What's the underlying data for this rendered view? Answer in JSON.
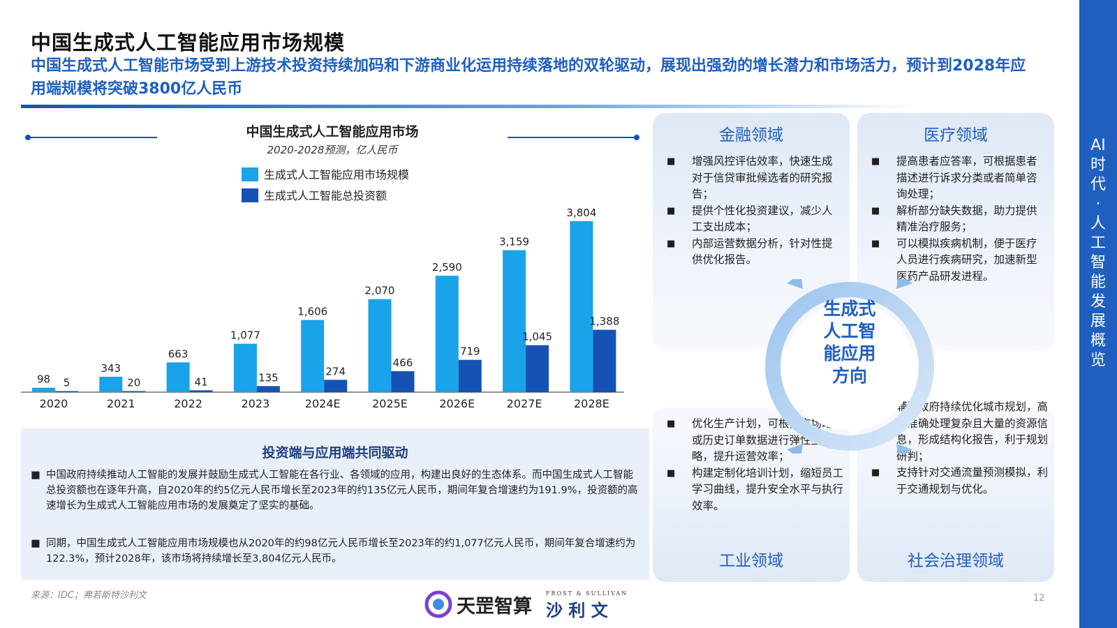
{
  "page": {
    "title": "中国生成式人工智能应用市场规模",
    "subtitle": "中国生成式人工智能市场受到上游技术投资持续加码和下游商业化运用持续落地的双轮驱动，展现出强劲的增长潜力和市场活力，预计到2028年应用端规模将突破3800亿人民币",
    "side_label_chars": [
      "AI",
      "时",
      "代",
      "·",
      "人",
      "工",
      "智",
      "能",
      "发",
      "展",
      "概",
      "览"
    ],
    "source": "来源：IDC；弗若斯特沙利文",
    "page_number": "12",
    "logo1": "天罡智算",
    "logo2_top": "FROST & SULLIVAN",
    "logo2": "沙 利 文"
  },
  "colors": {
    "series_light": "#1aa3e8",
    "series_dark": "#1552b4",
    "accent": "#1f5fbf"
  },
  "chart_data": {
    "type": "bar",
    "title": "中国生成式人工智能应用市场",
    "subtitle": "2020-2028预测，亿人民币",
    "categories": [
      "2020",
      "2021",
      "2022",
      "2023",
      "2024E",
      "2025E",
      "2026E",
      "2027E",
      "2028E"
    ],
    "series": [
      {
        "name": "生成式人工智能应用市场规模",
        "values": [
          98,
          343,
          663,
          1077,
          1606,
          2070,
          2590,
          3159,
          3804
        ],
        "labels": [
          "98",
          "343",
          "663",
          "1,077",
          "1,606",
          "2,070",
          "2,590",
          "3,159",
          "3,804"
        ]
      },
      {
        "name": "生成式人工智能总投资额",
        "values": [
          5,
          20,
          41,
          135,
          274,
          466,
          719,
          1045,
          1388
        ],
        "labels": [
          "5",
          "20",
          "41",
          "135",
          "274",
          "466",
          "719",
          "1,045",
          "1,388"
        ]
      }
    ],
    "ylim": [
      0,
      3804
    ],
    "grid": false,
    "legend": "top"
  },
  "driver": {
    "title": "投资端与应用端共同驱动",
    "bullet": "■",
    "paragraphs": [
      "中国政府持续推动人工智能的发展并鼓励生成式人工智能在各行业、各领域的应用，构建出良好的生态体系。而中国生成式人工智能总投资额也在逐年升高，自2020年的约5亿元人民币增长至2023年的约135亿元人民币，期间年复合增速约为191.9%，投资额的高速增长为生成式人工智能应用市场的发展奠定了坚实的基础。",
      "同期，中国生成式人工智能应用市场规模也从2020年的约98亿元人民币增长至2023年的约1,077亿元人民币，期间年复合增速约为122.3%，预计2028年，该市场将持续增长至3,804亿元人民币。"
    ]
  },
  "center": {
    "lines": [
      "生成式",
      "人工智",
      "能应用",
      "方向"
    ]
  },
  "domains": {
    "finance": {
      "title": "金融领域",
      "items": [
        "增强风控评估效率，快速生成对于信贷审批候选者的研究报告；",
        "提供个性化投资建议，减少人工支出成本；",
        "内部运营数据分析，针对性提供优化报告。"
      ]
    },
    "medical": {
      "title": "医疗领域",
      "items": [
        "提高患者应答率，可根据患者描述进行诉求分类或者简单咨询处理；",
        "解析部分缺失数据，助力提供精准治疗服务；",
        "可以模拟疾病机制，便于医疗人员进行疾病研究，加速新型医药产品研发进程。"
      ]
    },
    "industry": {
      "title": "工业领域",
      "items": [
        "优化生产计划，可根据市场动态或历史订单数据进行弹性生产策略，提升运营效率；",
        "构建定制化培训计划，缩短员工学习曲线，提升安全水平与执行效率。"
      ]
    },
    "governance": {
      "title": "社会治理领域",
      "items": [
        "辅助政府持续优化城市规划，高效准确处理复杂且大量的资源信息，形成结构化报告，利于规划研判；",
        "支持针对交通流量预测模拟，利于交通规划与优化。"
      ]
    }
  }
}
